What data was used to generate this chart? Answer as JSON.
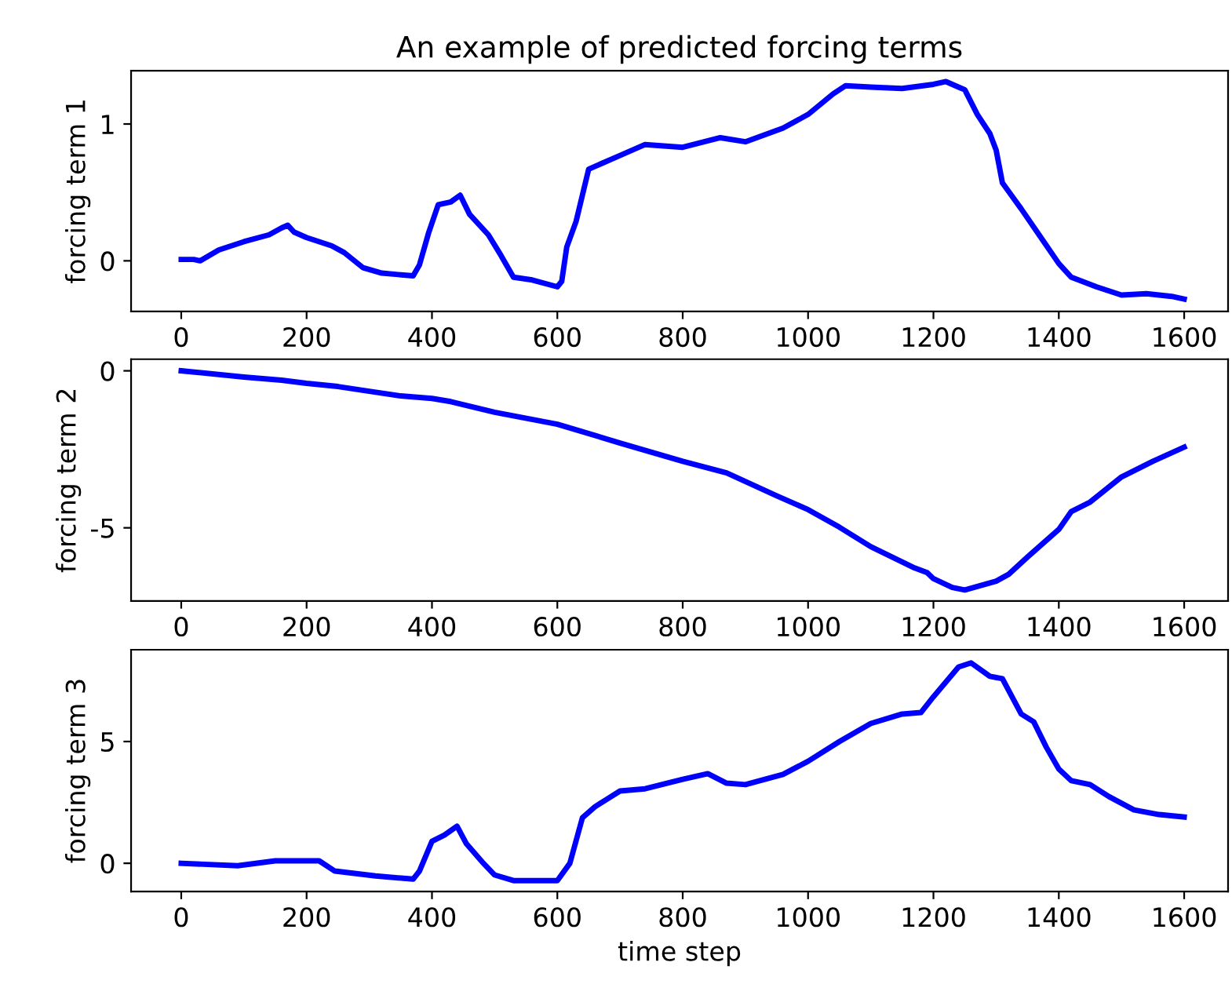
{
  "chart_data": [
    {
      "type": "line",
      "title": "An example of predicted forcing terms",
      "ylabel": "forcing term 1",
      "x": [
        0,
        20,
        30,
        60,
        100,
        140,
        160,
        170,
        180,
        200,
        240,
        260,
        290,
        320,
        370,
        380,
        395,
        410,
        430,
        445,
        460,
        490,
        510,
        530,
        560,
        600,
        607,
        615,
        630,
        650,
        700,
        740,
        800,
        860,
        900,
        960,
        1000,
        1040,
        1060,
        1100,
        1150,
        1200,
        1220,
        1240,
        1250,
        1270,
        1290,
        1300,
        1310,
        1340,
        1370,
        1400,
        1420,
        1460,
        1500,
        1540,
        1580,
        1600
      ],
      "series": [
        {
          "color": "#0000ff",
          "values": [
            0.01,
            0.01,
            0.0,
            0.08,
            0.14,
            0.19,
            0.24,
            0.26,
            0.21,
            0.17,
            0.11,
            0.06,
            -0.05,
            -0.09,
            -0.11,
            -0.03,
            0.21,
            0.41,
            0.43,
            0.48,
            0.34,
            0.19,
            0.04,
            -0.12,
            -0.14,
            -0.19,
            -0.15,
            0.1,
            0.29,
            0.67,
            0.77,
            0.85,
            0.83,
            0.9,
            0.87,
            0.97,
            1.07,
            1.22,
            1.28,
            1.27,
            1.26,
            1.29,
            1.31,
            1.27,
            1.25,
            1.07,
            0.93,
            0.81,
            0.57,
            0.38,
            0.18,
            -0.02,
            -0.12,
            -0.19,
            -0.25,
            -0.24,
            -0.26,
            -0.28
          ]
        }
      ],
      "xlim": [
        -80,
        1670
      ],
      "ylim": [
        -0.37,
        1.39
      ],
      "xticks": [
        0,
        200,
        400,
        600,
        800,
        1000,
        1200,
        1400,
        1600
      ],
      "yticks": [
        0,
        1
      ]
    },
    {
      "type": "line",
      "ylabel": "forcing term 2",
      "x": [
        0,
        100,
        160,
        200,
        250,
        300,
        350,
        400,
        430,
        500,
        600,
        700,
        800,
        870,
        950,
        1000,
        1050,
        1100,
        1170,
        1190,
        1200,
        1230,
        1250,
        1300,
        1320,
        1350,
        1400,
        1420,
        1450,
        1500,
        1550,
        1600
      ],
      "series": [
        {
          "color": "#0000ff",
          "values": [
            0,
            -0.2,
            -0.3,
            -0.4,
            -0.5,
            -0.65,
            -0.8,
            -0.88,
            -0.98,
            -1.32,
            -1.7,
            -2.3,
            -2.88,
            -3.25,
            -3.98,
            -4.42,
            -4.98,
            -5.6,
            -6.28,
            -6.43,
            -6.62,
            -6.9,
            -6.98,
            -6.7,
            -6.48,
            -5.93,
            -5.05,
            -4.48,
            -4.18,
            -3.38,
            -2.88,
            -2.43
          ]
        }
      ],
      "xlim": [
        -80,
        1670
      ],
      "ylim": [
        -7.33,
        0.37
      ],
      "xticks": [
        0,
        200,
        400,
        600,
        800,
        1000,
        1200,
        1400,
        1600
      ],
      "yticks": [
        -5,
        0
      ]
    },
    {
      "type": "line",
      "ylabel": "forcing term 3",
      "xlabel": "time step",
      "x": [
        0,
        90,
        150,
        220,
        245,
        310,
        370,
        380,
        400,
        420,
        440,
        455,
        480,
        500,
        530,
        600,
        620,
        640,
        660,
        700,
        740,
        800,
        840,
        870,
        900,
        960,
        1000,
        1050,
        1100,
        1150,
        1180,
        1200,
        1240,
        1260,
        1290,
        1310,
        1340,
        1360,
        1380,
        1400,
        1420,
        1450,
        1480,
        1520,
        1560,
        1600
      ],
      "series": [
        {
          "color": "#0000ff",
          "values": [
            0,
            -0.1,
            0.1,
            0.1,
            -0.32,
            -0.52,
            -0.65,
            -0.32,
            0.9,
            1.16,
            1.52,
            0.8,
            0.06,
            -0.48,
            -0.71,
            -0.71,
            0,
            1.87,
            2.32,
            2.97,
            3.06,
            3.45,
            3.68,
            3.29,
            3.23,
            3.65,
            4.19,
            5.0,
            5.74,
            6.13,
            6.19,
            6.84,
            8.06,
            8.23,
            7.68,
            7.58,
            6.13,
            5.81,
            4.77,
            3.87,
            3.39,
            3.23,
            2.74,
            2.19,
            2.0,
            1.9
          ]
        }
      ],
      "xlim": [
        -80,
        1670
      ],
      "ylim": [
        -1.16,
        8.77
      ],
      "xticks": [
        0,
        200,
        400,
        600,
        800,
        1000,
        1200,
        1400,
        1600
      ],
      "yticks": [
        0,
        5
      ]
    }
  ]
}
